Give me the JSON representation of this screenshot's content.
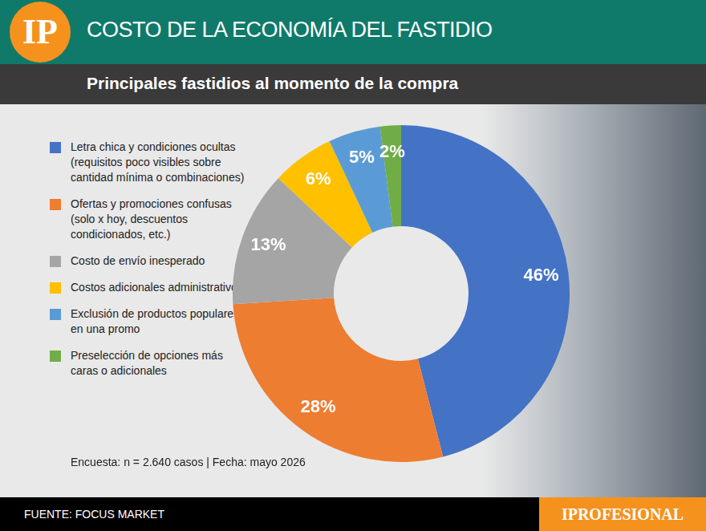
{
  "page": {
    "logo": "IP",
    "source": "FUENTE: FOCUS MARKET",
    "brand": "IPROFESIONAL"
  },
  "chart_data": {
    "type": "doughnut",
    "title": "COSTO DE LA ECONOMÍA DEL FASTIDIO",
    "subtitle": "Principales fastidios al momento de la compra",
    "categories": [
      "Letra chica y condiciones ocultas (requisitos poco visibles sobre cantidad mínima o combinaciones)",
      "Ofertas y promociones confusas (solo x hoy, descuentos condicionados, etc.)",
      "Costo de envío inesperado",
      "Costos adicionales administrativos",
      "Exclusión de productos populares en una promo",
      "Preselección de opciones más caras o adicionales"
    ],
    "values": [
      46,
      28,
      13,
      6,
      5,
      2
    ],
    "value_labels": [
      "46%",
      "28%",
      "13%",
      "6%",
      "5%",
      "2%"
    ],
    "colors": [
      "#4472c4",
      "#ed7d31",
      "#a5a5a5",
      "#ffc000",
      "#5b9bd5",
      "#70ad47"
    ],
    "data_labels": true,
    "legend": "left",
    "note": "Encuesta: n = 2.640 casos | Fecha: mayo 2026"
  }
}
